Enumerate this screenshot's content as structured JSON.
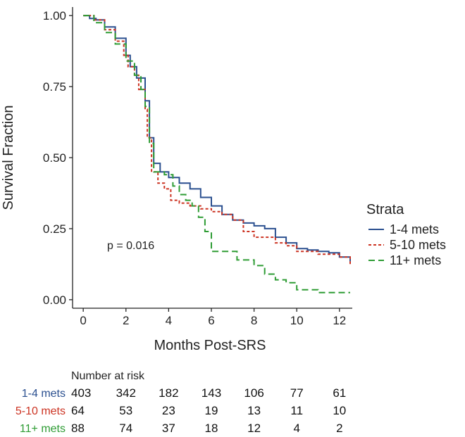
{
  "chart_data": {
    "type": "line",
    "xlabel": "Months Post-SRS",
    "ylabel": "Survival Fraction",
    "xlim": [
      -0.5,
      12.6
    ],
    "ylim": [
      -0.03,
      1.03
    ],
    "x_ticks": [
      0,
      2,
      4,
      6,
      8,
      10,
      12
    ],
    "y_ticks": [
      0.0,
      0.25,
      0.5,
      0.75,
      1.0
    ],
    "x_tick_labels": [
      "0",
      "2",
      "4",
      "6",
      "8",
      "10",
      "12"
    ],
    "y_tick_labels": [
      "0.00",
      "0.25",
      "0.50",
      "0.75",
      "1.00"
    ],
    "legend": {
      "title": "Strata",
      "position": "right"
    },
    "annotation": "p = 0.016",
    "series": [
      {
        "name": "1-4 mets",
        "color": "#2a4f8f",
        "dash": "solid",
        "points": [
          [
            0,
            1.0
          ],
          [
            0.3,
            0.99
          ],
          [
            0.6,
            0.985
          ],
          [
            1.0,
            0.96
          ],
          [
            1.5,
            0.92
          ],
          [
            2.0,
            0.86
          ],
          [
            2.2,
            0.82
          ],
          [
            2.5,
            0.78
          ],
          [
            2.9,
            0.7
          ],
          [
            3.1,
            0.57
          ],
          [
            3.3,
            0.48
          ],
          [
            3.6,
            0.45
          ],
          [
            4.0,
            0.43
          ],
          [
            4.5,
            0.41
          ],
          [
            5.0,
            0.39
          ],
          [
            5.5,
            0.36
          ],
          [
            6.0,
            0.33
          ],
          [
            6.5,
            0.3
          ],
          [
            7.0,
            0.28
          ],
          [
            7.5,
            0.27
          ],
          [
            8.0,
            0.26
          ],
          [
            8.5,
            0.25
          ],
          [
            9.0,
            0.22
          ],
          [
            9.5,
            0.2
          ],
          [
            10.0,
            0.18
          ],
          [
            10.5,
            0.175
          ],
          [
            11.0,
            0.17
          ],
          [
            11.5,
            0.165
          ],
          [
            12.0,
            0.15
          ],
          [
            12.5,
            0.135
          ]
        ]
      },
      {
        "name": "5-10 mets",
        "color": "#cc3322",
        "dash": "short",
        "points": [
          [
            0,
            1.0
          ],
          [
            0.5,
            0.985
          ],
          [
            1.0,
            0.95
          ],
          [
            1.5,
            0.91
          ],
          [
            1.9,
            0.86
          ],
          [
            2.1,
            0.82
          ],
          [
            2.4,
            0.79
          ],
          [
            2.6,
            0.74
          ],
          [
            2.9,
            0.67
          ],
          [
            3.0,
            0.57
          ],
          [
            3.2,
            0.45
          ],
          [
            3.5,
            0.41
          ],
          [
            3.8,
            0.39
          ],
          [
            4.1,
            0.35
          ],
          [
            4.5,
            0.34
          ],
          [
            5.0,
            0.33
          ],
          [
            5.5,
            0.32
          ],
          [
            6.0,
            0.31
          ],
          [
            6.5,
            0.3
          ],
          [
            7.0,
            0.28
          ],
          [
            7.5,
            0.24
          ],
          [
            8.0,
            0.22
          ],
          [
            9.0,
            0.2
          ],
          [
            9.5,
            0.19
          ],
          [
            10.0,
            0.17
          ],
          [
            11.0,
            0.16
          ],
          [
            12.0,
            0.15
          ],
          [
            12.5,
            0.12
          ]
        ]
      },
      {
        "name": "11+ mets",
        "color": "#2e9c34",
        "dash": "long",
        "points": [
          [
            0,
            1.0
          ],
          [
            0.5,
            0.975
          ],
          [
            1.0,
            0.94
          ],
          [
            1.5,
            0.9
          ],
          [
            2.0,
            0.84
          ],
          [
            2.4,
            0.79
          ],
          [
            2.7,
            0.74
          ],
          [
            2.9,
            0.68
          ],
          [
            3.1,
            0.55
          ],
          [
            3.3,
            0.45
          ],
          [
            3.8,
            0.44
          ],
          [
            4.2,
            0.4
          ],
          [
            4.5,
            0.37
          ],
          [
            4.8,
            0.35
          ],
          [
            5.1,
            0.33
          ],
          [
            5.4,
            0.29
          ],
          [
            5.7,
            0.24
          ],
          [
            6.0,
            0.17
          ],
          [
            7.0,
            0.17
          ],
          [
            7.2,
            0.14
          ],
          [
            8.0,
            0.12
          ],
          [
            8.5,
            0.09
          ],
          [
            9.0,
            0.07
          ],
          [
            9.5,
            0.06
          ],
          [
            10.0,
            0.035
          ],
          [
            10.5,
            0.035
          ],
          [
            11.0,
            0.025
          ],
          [
            12.5,
            0.025
          ]
        ]
      }
    ]
  },
  "risk_table": {
    "title": "Number at risk",
    "rows": [
      {
        "label": "1-4 mets",
        "color": "#2a4f8f",
        "values": [
          "403",
          "342",
          "182",
          "143",
          "106",
          "77",
          "61"
        ]
      },
      {
        "label": "5-10 mets",
        "color": "#cc3322",
        "values": [
          "64",
          "53",
          "23",
          "19",
          "13",
          "11",
          "10"
        ]
      },
      {
        "label": "11+ mets",
        "color": "#2e9c34",
        "values": [
          "88",
          "74",
          "37",
          "18",
          "12",
          "4",
          "2"
        ]
      }
    ]
  }
}
